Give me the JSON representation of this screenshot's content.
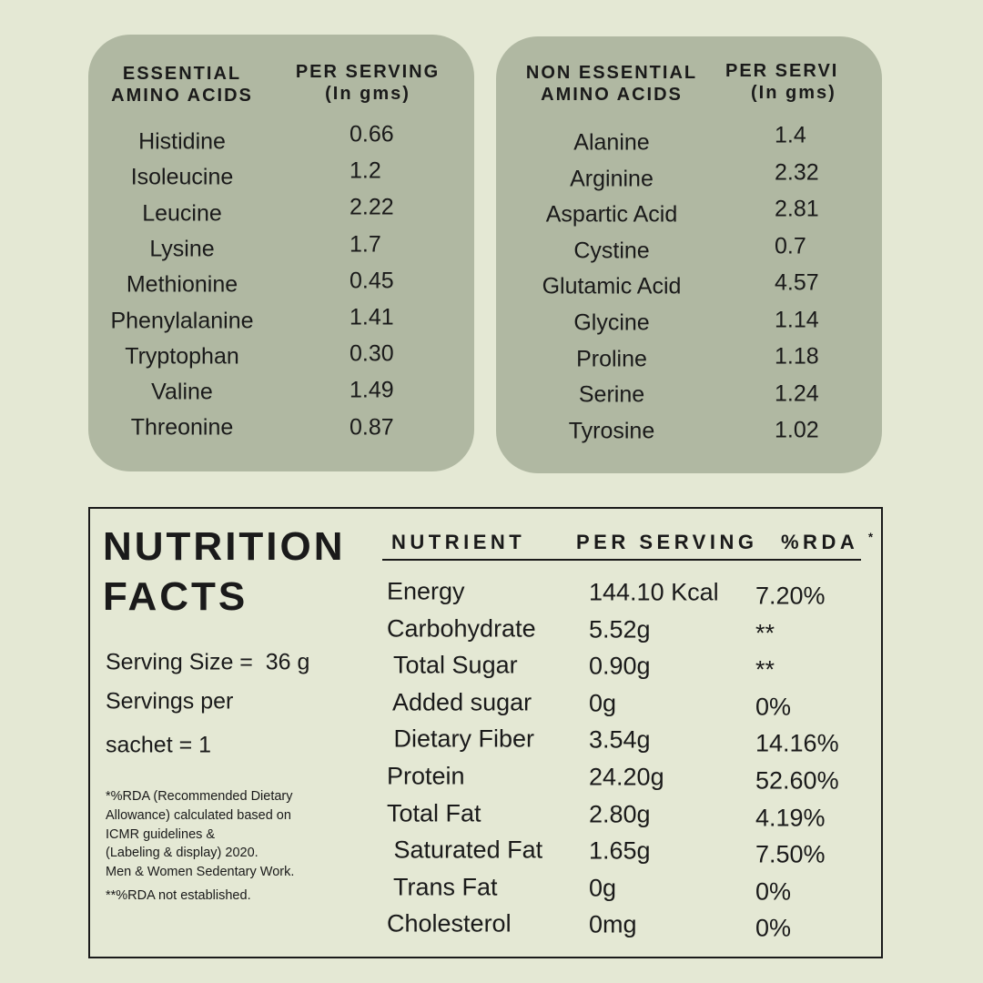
{
  "essential": {
    "header": [
      "ESSENTIAL",
      "AMINO ACIDS"
    ],
    "value_header": [
      "PER SERVING",
      "(In gms)"
    ],
    "rows": [
      [
        "Histidine",
        "0.66"
      ],
      [
        "Isoleucine",
        "1.2"
      ],
      [
        "Leucine",
        "2.22"
      ],
      [
        "Lysine",
        "1.7"
      ],
      [
        "Methionine",
        "0.45"
      ],
      [
        "Phenylalanine",
        "1.41"
      ],
      [
        "Tryptophan",
        "0.30"
      ],
      [
        "Valine",
        "1.49"
      ],
      [
        "Threonine",
        "0.87"
      ]
    ]
  },
  "non_essential": {
    "header": [
      "NON ESSENTIAL",
      "AMINO ACIDS"
    ],
    "value_header": [
      "PER SERVI",
      "(In gms)"
    ],
    "rows": [
      [
        "Alanine",
        "1.4"
      ],
      [
        "Arginine",
        "2.32"
      ],
      [
        "Aspartic Acid",
        "2.81"
      ],
      [
        "Cystine",
        "0.7"
      ],
      [
        "Glutamic Acid",
        "4.57"
      ],
      [
        "Glycine",
        "1.14"
      ],
      [
        "Proline",
        "1.18"
      ],
      [
        "Serine",
        "1.24"
      ],
      [
        "Tyrosine",
        "1.02"
      ]
    ]
  },
  "nutrition": {
    "title": [
      "NUTRITION",
      "FACTS"
    ],
    "serving": [
      "Serving Size =  36 g",
      "Servings per",
      "sachet = 1"
    ],
    "footnotes": [
      "*%RDA (Recommended Dietary",
      "Allowance) calculated based on",
      "ICMR guidelines &",
      "(Labeling & display) 2020.",
      "Men & Women Sedentary Work."
    ],
    "footnote2": "**%RDA not established.",
    "columns": [
      "NUTRIENT",
      "PER SERVING",
      "%RDA"
    ],
    "rda_mark": "*",
    "rows": [
      [
        "Energy",
        "144.10 Kcal",
        "7.20%"
      ],
      [
        "Carbohydrate",
        "5.52g",
        "**"
      ],
      [
        " Total Sugar",
        "0.90g",
        "**"
      ],
      [
        " Added sugar",
        "0g",
        "0%"
      ],
      [
        " Dietary Fiber",
        "3.54g",
        "14.16%"
      ],
      [
        "Protein",
        "24.20g",
        "52.60%"
      ],
      [
        "Total Fat",
        "2.80g",
        "4.19%"
      ],
      [
        " Saturated Fat",
        "1.65g",
        "7.50%"
      ],
      [
        " Trans Fat",
        "0g",
        "0%"
      ],
      [
        "Cholesterol",
        "0mg",
        "0%"
      ]
    ]
  }
}
